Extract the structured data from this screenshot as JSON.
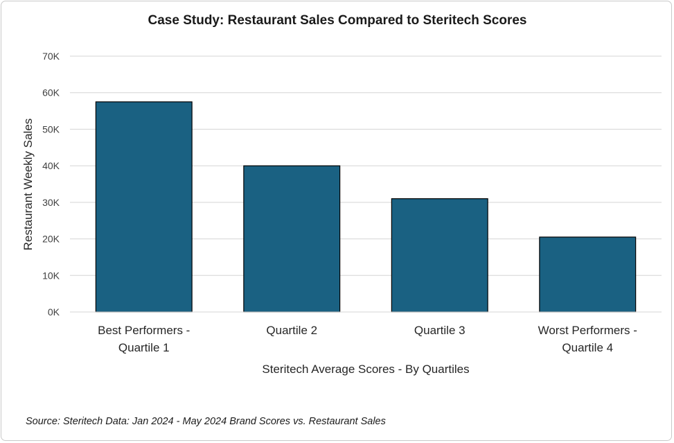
{
  "chart_data": {
    "type": "bar",
    "title": "Case Study: Restaurant Sales Compared to Steritech Scores",
    "categories": [
      [
        "Best Performers -",
        "Quartile 1"
      ],
      [
        "Quartile 2"
      ],
      [
        "Quartile 3"
      ],
      [
        "Worst Performers -",
        "Quartile 4"
      ]
    ],
    "values": [
      57500,
      40000,
      31000,
      20500
    ],
    "xlabel": "Steritech Average Scores - By Quartiles",
    "ylabel": "Restaurant Weekly  Sales",
    "ylim": [
      0,
      70000
    ],
    "yticks": [
      0,
      10000,
      20000,
      30000,
      40000,
      50000,
      60000,
      70000
    ],
    "ytick_labels": [
      "0K",
      "10K",
      "20K",
      "30K",
      "40K",
      "50K",
      "60K",
      "70K"
    ],
    "grid": true,
    "legend": "none",
    "bar_color": "#1a6182",
    "bar_edge_color": "#000000",
    "gridline_color": "#d4d4d4"
  },
  "footer": {
    "source": "Source: Steritech Data: Jan 2024 -  May 2024 Brand Scores vs. Restaurant Sales"
  }
}
